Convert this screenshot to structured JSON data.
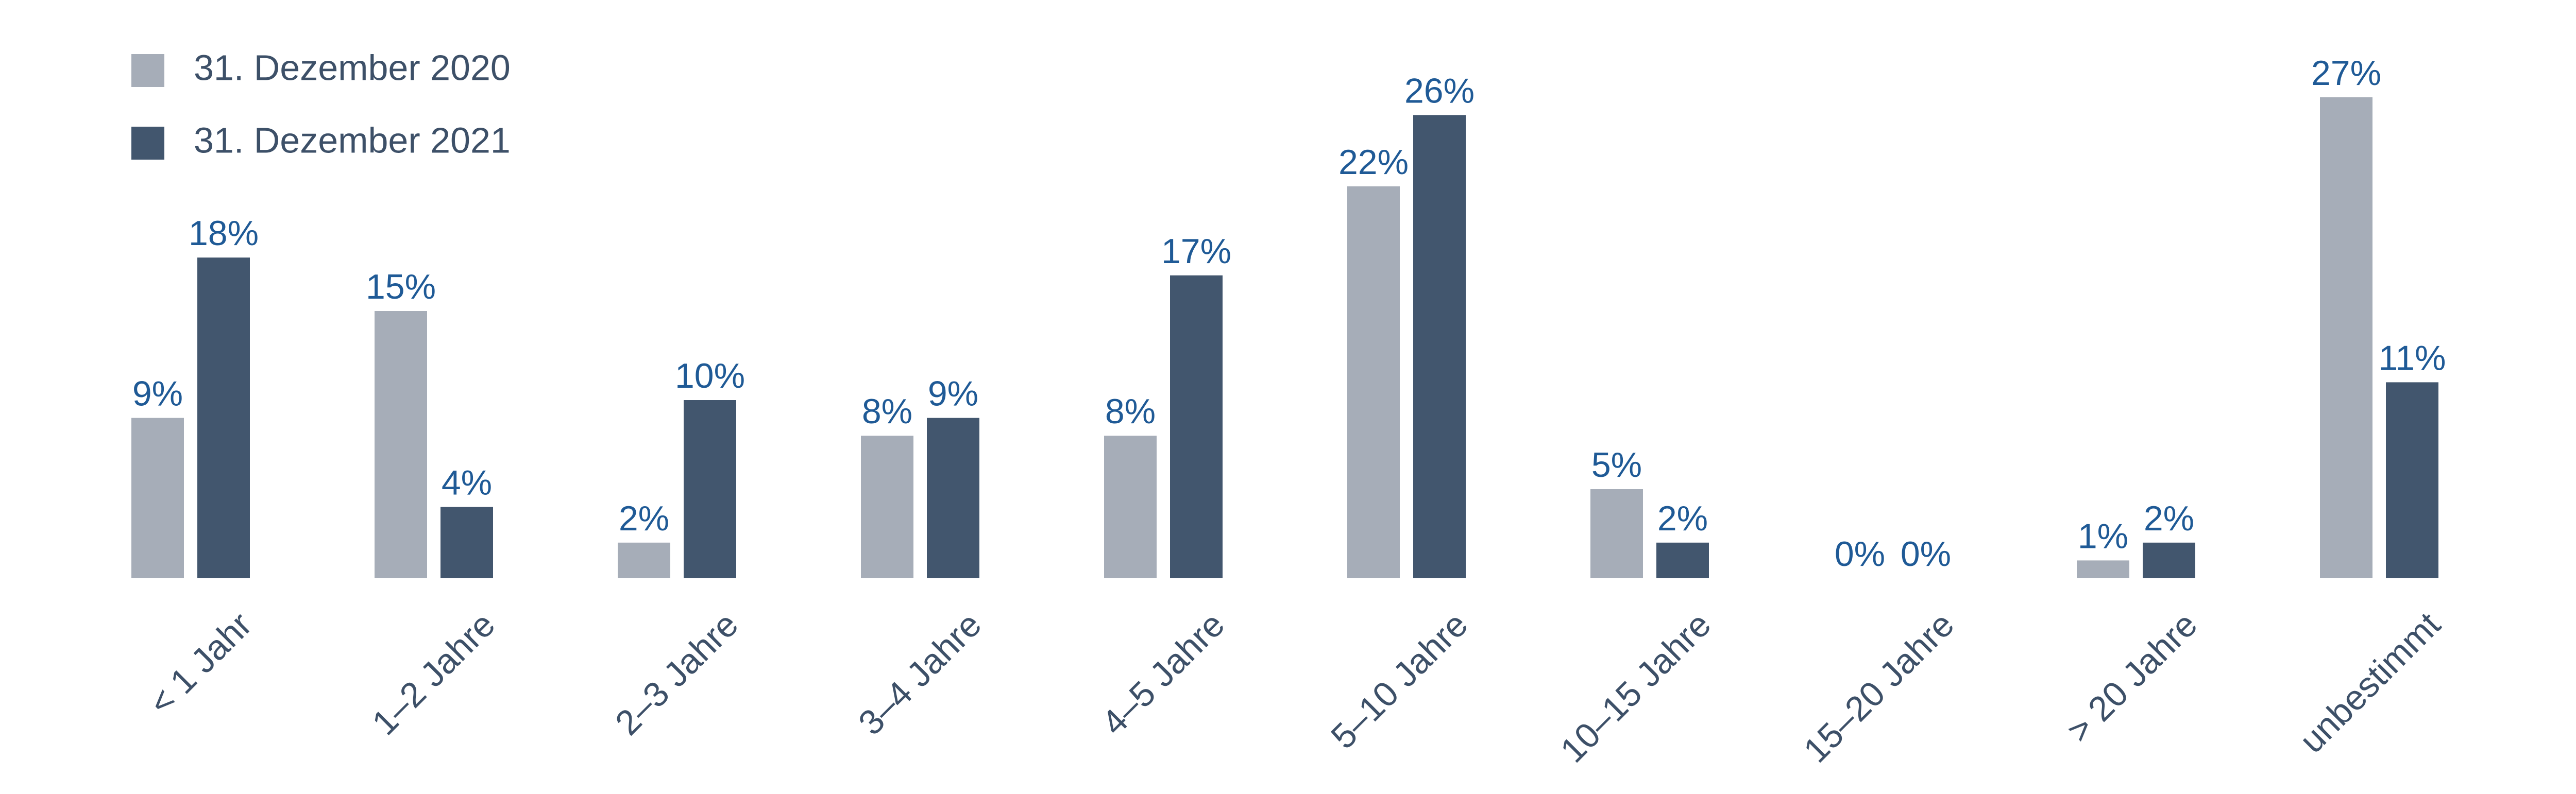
{
  "chart_data": {
    "type": "bar",
    "categories": [
      "< 1 Jahr",
      "1–2 Jahre",
      "2–3 Jahre",
      "3–4 Jahre",
      "4–5 Jahre",
      "5–10 Jahre",
      "10–15 Jahre",
      "15–20 Jahre",
      "> 20 Jahre",
      "unbestimmt"
    ],
    "series": [
      {
        "name": "31. Dezember 2020",
        "color": "#a6adb8",
        "values": [
          9,
          15,
          2,
          8,
          8,
          22,
          5,
          0,
          1,
          27
        ],
        "value_labels": [
          "9%",
          "15%",
          "2%",
          "8%",
          "8%",
          "22%",
          "5%",
          "0%",
          "1%",
          "27%"
        ]
      },
      {
        "name": "31. Dezember 2021",
        "color": "#42566e",
        "values": [
          18,
          4,
          10,
          9,
          17,
          26,
          2,
          0,
          2,
          11
        ],
        "value_labels": [
          "18%",
          "4%",
          "10%",
          "9%",
          "17%",
          "26%",
          "2%",
          "0%",
          "2%",
          "11%"
        ]
      }
    ],
    "legend": "top-left"
  }
}
